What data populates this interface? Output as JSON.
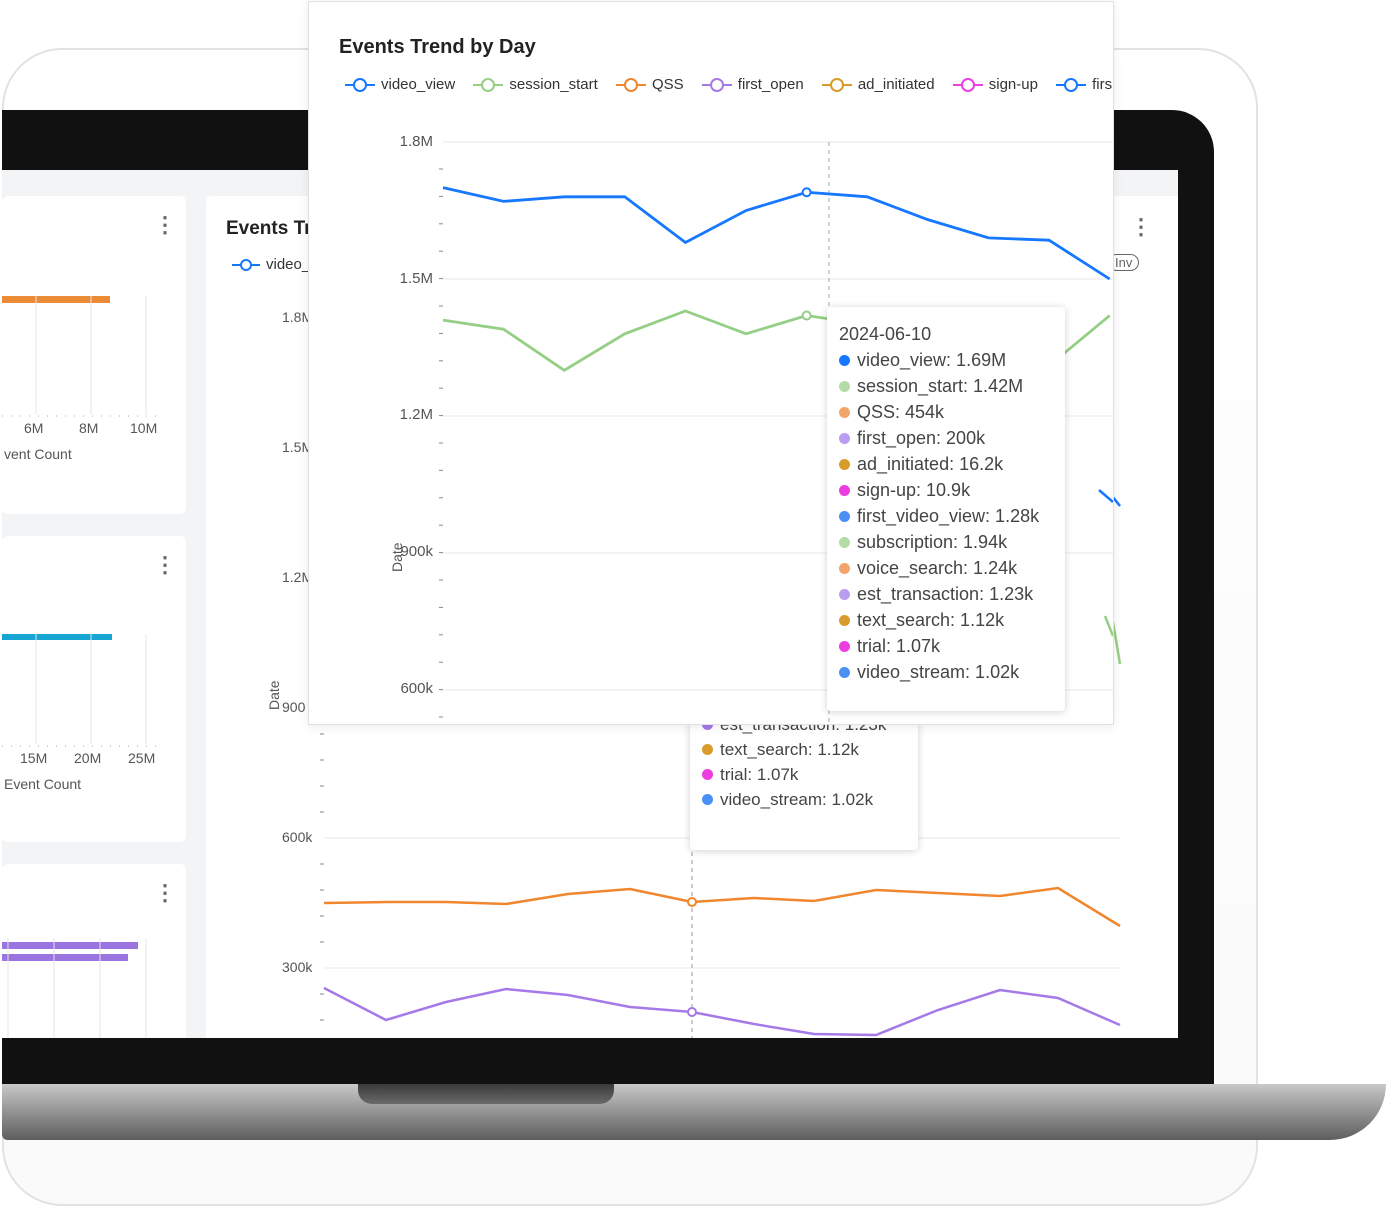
{
  "colors": {
    "video_view": "#1677ff",
    "session_start": "#95cf85",
    "qss": "#f0862e",
    "first_open": "#a57ae8",
    "ad_initiated": "#d89b2c",
    "sign_up": "#ec3ee0"
  },
  "left_cards": [
    {
      "ticks": [
        "6M",
        "8M",
        "10M"
      ],
      "axis_title": "vent Count",
      "bar_color": "#ec8b35"
    },
    {
      "ticks": [
        "15M",
        "20M",
        "25M"
      ],
      "axis_title": "Event Count",
      "bar_color": "#17a5d4"
    },
    {
      "ticks": [],
      "axis_title": "",
      "bar_color": "#9a74e0"
    }
  ],
  "background_chart": {
    "title_fragment": "Events Tr",
    "legend_fragment": "video_",
    "y_ticks": [
      "1.8M",
      "1.5M",
      "1.2M",
      "900",
      "600k",
      "300k"
    ],
    "y_axis_title": "Date",
    "badge": "Inv",
    "tooltip_rows": [
      {
        "label": "voice_search: 1.24k",
        "color": "#f0862e"
      },
      {
        "label": "est_transaction: 1.23k",
        "color": "#a57ae8"
      },
      {
        "label": "text_search: 1.12k",
        "color": "#d89b2c"
      },
      {
        "label": "trial: 1.07k",
        "color": "#ec3ee0"
      },
      {
        "label": "video_stream: 1.02k",
        "color": "#1677ff"
      }
    ]
  },
  "chart_data": {
    "type": "line",
    "title": "Events Trend by Day",
    "legend": [
      "video_view",
      "session_start",
      "QSS",
      "first_open",
      "ad_initiated",
      "sign-up",
      "firs"
    ],
    "y_ticks": [
      "1.8M",
      "1.5M",
      "1.2M",
      "900k",
      "600k"
    ],
    "ylim": [
      600000,
      1800000
    ],
    "ylabel": "Date",
    "highlight_date": "2024-06-10",
    "series": [
      {
        "name": "video_view",
        "values": [
          1700000.0,
          1670000.0,
          1680000.0,
          1680000.0,
          1580000.0,
          1650000.0,
          1690000.0,
          1680000.0,
          1630000.0,
          1590000.0,
          1585000.0,
          1500000.0
        ]
      },
      {
        "name": "session_start",
        "values": [
          1410000.0,
          1390000.0,
          1300000.0,
          1380000.0,
          1430000.0,
          1380000.0,
          1420000.0,
          1400000.0,
          1370000.0,
          1330000.0,
          1310000.0,
          1420000.0
        ]
      }
    ],
    "tooltip": {
      "date": "2024-06-10",
      "rows": [
        {
          "label": "video_view: 1.69M",
          "color": "#1677ff"
        },
        {
          "label": "session_start: 1.42M",
          "color": "#b3dca7"
        },
        {
          "label": "QSS: 454k",
          "color": "#f3a46a"
        },
        {
          "label": "first_open: 200k",
          "color": "#b99df0"
        },
        {
          "label": "ad_initiated: 16.2k",
          "color": "#d89b2c"
        },
        {
          "label": "sign-up: 10.9k",
          "color": "#ec3ee0"
        },
        {
          "label": "first_video_view: 1.28k",
          "color": "#4a8ff5"
        },
        {
          "label": "subscription: 1.94k",
          "color": "#b3dca7"
        },
        {
          "label": "voice_search: 1.24k",
          "color": "#f3a46a"
        },
        {
          "label": "est_transaction: 1.23k",
          "color": "#b99df0"
        },
        {
          "label": "text_search: 1.12k",
          "color": "#d89b2c"
        },
        {
          "label": "trial: 1.07k",
          "color": "#ec3ee0"
        },
        {
          "label": "video_stream: 1.02k",
          "color": "#4a8ff5"
        }
      ]
    }
  }
}
